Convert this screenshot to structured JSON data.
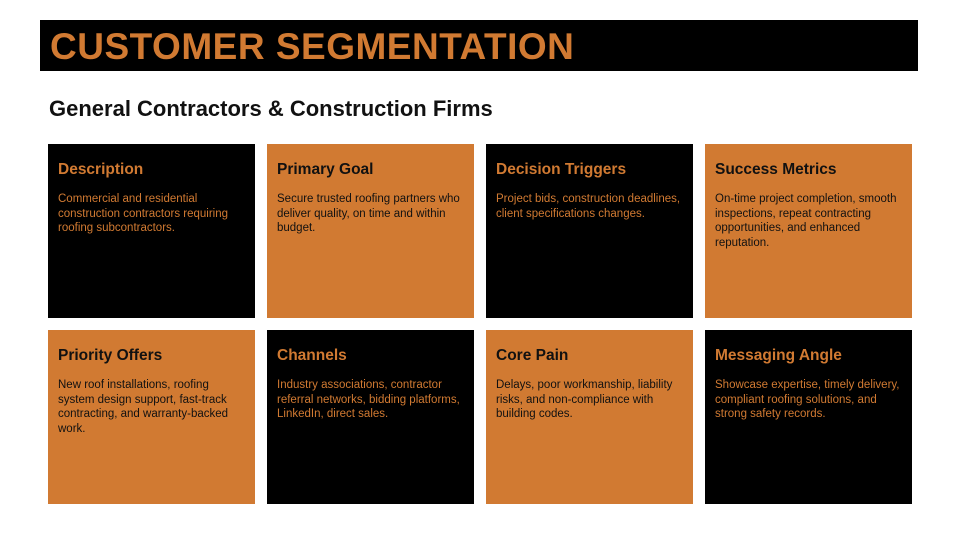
{
  "header": {
    "title": "CUSTOMER SEGMENTATION",
    "subtitle": "General Contractors & Construction Firms"
  },
  "colors": {
    "accent": "#d17a32",
    "dark": "#000000",
    "text_dark": "#111111"
  },
  "cards": [
    {
      "title": "Description",
      "body": "Commercial and residential construction contractors requiring roofing subcontractors.",
      "style": "dark"
    },
    {
      "title": "Primary Goal",
      "body": "Secure trusted roofing partners who deliver quality, on time and within budget.",
      "style": "orange"
    },
    {
      "title": "Decision Triggers",
      "body": "Project bids, construction deadlines, client specifications changes.",
      "style": "dark"
    },
    {
      "title": "Success Metrics",
      "body": "On-time project completion, smooth inspections, repeat contracting opportunities, and enhanced reputation.",
      "style": "orange"
    },
    {
      "title": "Priority Offers",
      "body": "New roof installations, roofing system design support, fast-track contracting, and warranty-backed work.",
      "style": "orange"
    },
    {
      "title": "Channels",
      "body": "Industry associations, contractor referral networks, bidding platforms, LinkedIn, direct sales.",
      "style": "dark"
    },
    {
      "title": "Core Pain",
      "body": "Delays, poor workmanship, liability risks, and non-compliance with building codes.",
      "style": "orange"
    },
    {
      "title": "Messaging Angle",
      "body": "Showcase expertise, timely delivery, compliant roofing solutions, and strong safety records.",
      "style": "dark"
    }
  ]
}
